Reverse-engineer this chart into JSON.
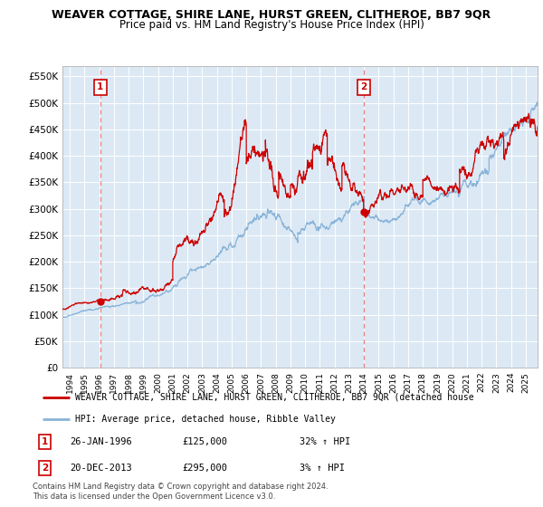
{
  "title": "WEAVER COTTAGE, SHIRE LANE, HURST GREEN, CLITHEROE, BB7 9QR",
  "subtitle": "Price paid vs. HM Land Registry's House Price Index (HPI)",
  "ylim": [
    0,
    570000
  ],
  "xlim_start": 1993.5,
  "xlim_end": 2025.8,
  "background_color": "#dce9f5",
  "plot_bg_color": "#dce9f5",
  "grid_color": "#ffffff",
  "red_line_color": "#cc0000",
  "blue_line_color": "#8ab4d8",
  "sale1_x": 1996.07,
  "sale1_y": 125000,
  "sale1_label": "1",
  "sale2_x": 2013.97,
  "sale2_y": 295000,
  "sale2_label": "2",
  "vline_x1": 1996.07,
  "vline_x2": 2013.97,
  "ytick_values": [
    0,
    50000,
    100000,
    150000,
    200000,
    250000,
    300000,
    350000,
    400000,
    450000,
    500000,
    550000
  ],
  "ytick_labels": [
    "£0",
    "£50K",
    "£100K",
    "£150K",
    "£200K",
    "£250K",
    "£300K",
    "£350K",
    "£400K",
    "£450K",
    "£500K",
    "£550K"
  ],
  "xtick_years": [
    1994,
    1995,
    1996,
    1997,
    1998,
    1999,
    2000,
    2001,
    2002,
    2003,
    2004,
    2005,
    2006,
    2007,
    2008,
    2009,
    2010,
    2011,
    2012,
    2013,
    2014,
    2015,
    2016,
    2017,
    2018,
    2019,
    2020,
    2021,
    2022,
    2023,
    2024,
    2025
  ],
  "legend_red_label": "WEAVER COTTAGE, SHIRE LANE, HURST GREEN, CLITHEROE, BB7 9QR (detached house",
  "legend_blue_label": "HPI: Average price, detached house, Ribble Valley",
  "annotation1_date": "26-JAN-1996",
  "annotation1_price": "£125,000",
  "annotation1_hpi": "32% ↑ HPI",
  "annotation2_date": "20-DEC-2013",
  "annotation2_price": "£295,000",
  "annotation2_hpi": "3% ↑ HPI",
  "footer": "Contains HM Land Registry data © Crown copyright and database right 2024.\nThis data is licensed under the Open Government Licence v3.0.",
  "title_fontsize": 9,
  "subtitle_fontsize": 8.5
}
